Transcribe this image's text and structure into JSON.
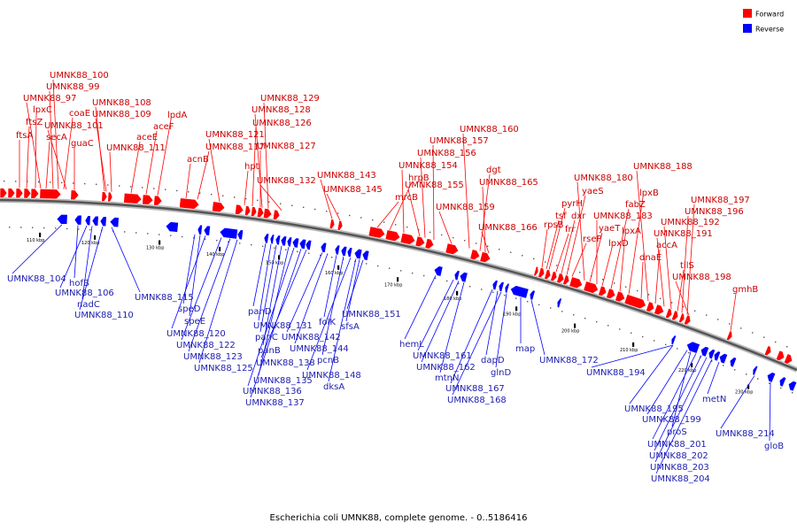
{
  "caption": "Escherichia coli UMNK88, complete genome. - 0..5186416",
  "colors": {
    "forward": "#ff0000",
    "reverse": "#0000ff",
    "fwd_text": "#cc0000",
    "rev_text": "#2020b0"
  },
  "legend": [
    {
      "label": "Forward",
      "key": "forward"
    },
    {
      "label": "Reverse",
      "key": "reverse"
    }
  ],
  "ticks": [
    {
      "label": "110 kbp",
      "pos": 110
    },
    {
      "label": "120 kbp",
      "pos": 120
    },
    {
      "label": "130 kbp",
      "pos": 130
    },
    {
      "label": "140 kbp",
      "pos": 140
    },
    {
      "label": "150 kbp",
      "pos": 150
    },
    {
      "label": "160 kbp",
      "pos": 160
    },
    {
      "label": "170 kbp",
      "pos": 170
    },
    {
      "label": "180 kbp",
      "pos": 180
    },
    {
      "label": "190 kbp",
      "pos": 190
    },
    {
      "label": "200 kbp",
      "pos": 200
    },
    {
      "label": "210 kbp",
      "pos": 210
    },
    {
      "label": "220 kbp",
      "pos": 220
    },
    {
      "label": "230 kbp",
      "pos": 230
    }
  ],
  "forward_genes": [
    "ftsA",
    "ftsZ",
    "lpxC",
    "UMNK88_97",
    "secA",
    "UMNK88_99",
    "UMNK88_100",
    "coaE",
    "guaC",
    "UMNK88_101",
    "UMNK88_108",
    "UMNK88_109",
    "UMNK88_111",
    "aceE",
    "aceF",
    "lpdA",
    "acnB",
    "UMNK88_117",
    "UMNK88_121",
    "hpt",
    "UMNK88_126",
    "UMNK88_127",
    "UMNK88_128",
    "UMNK88_129",
    "UMNK88_132",
    "UMNK88_143",
    "UMNK88_145",
    "mrcB",
    "hrpB",
    "UMNK88_154",
    "UMNK88_155",
    "UMNK88_156",
    "UMNK88_157",
    "UMNK88_159",
    "UMNK88_160",
    "dgt",
    "UMNK88_165",
    "UMNK88_166",
    "rpsB",
    "tsf",
    "pyrH",
    "frr",
    "dxr",
    "yaeS",
    "rseP",
    "UMNK88_180",
    "yaeT",
    "UMNK88_183",
    "lpxD",
    "fabZ",
    "lpxA",
    "lpxB",
    "dnaE",
    "UMNK88_188",
    "accA",
    "UMNK88_191",
    "UMNK88_192",
    "tilS",
    "UMNK88_196",
    "UMNK88_197",
    "UMNK88_198",
    "gmhB"
  ],
  "reverse_genes": [
    "UMNK88_104",
    "hofB",
    "UMNK88_106",
    "nadC",
    "UMNK88_110",
    "UMNK88_115",
    "speD",
    "speE",
    "UMNK88_120",
    "UMNK88_122",
    "UMNK88_123",
    "UMNK88_125",
    "panD",
    "UMNK88_131",
    "panC",
    "panB",
    "UMNK88_135",
    "UMNK88_136",
    "UMNK88_137",
    "UMNK88_138",
    "UMNK88_142",
    "UMNK88_144",
    "folK",
    "pcnB",
    "UMNK88_148",
    "dksA",
    "sfsA",
    "UMNK88_151",
    "hemL",
    "UMNK88_161",
    "UMNK88_162",
    "mtnN",
    "UMNK88_167",
    "dapD",
    "UMNK88_168",
    "glnD",
    "map",
    "UMNK88_172",
    "UMNK88_194",
    "UMNK88_195",
    "UMNK88_199",
    "proS",
    "UMNK88_201",
    "UMNK88_202",
    "UMNK88_203",
    "UMNK88_204",
    "metN",
    "UMNK88_214",
    "gloB"
  ]
}
